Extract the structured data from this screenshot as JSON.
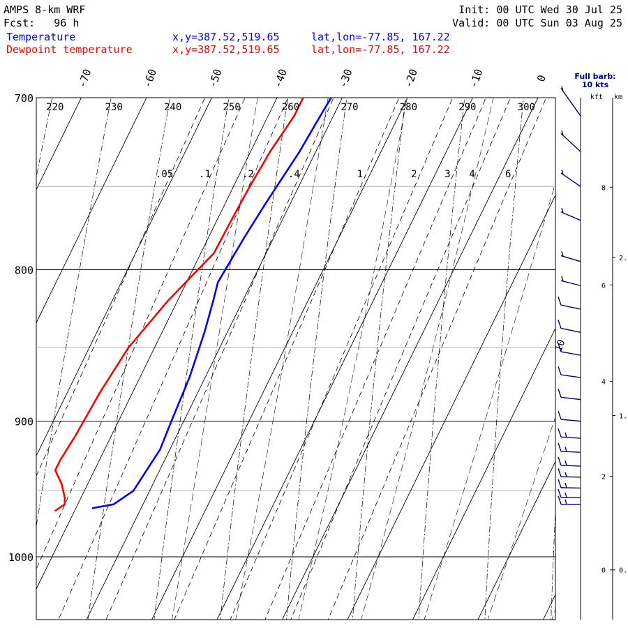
{
  "header": {
    "model": "AMPS 8-km WRF",
    "forecast_label": "Fcst:",
    "forecast_hours": "96 h",
    "init_label": "Init:",
    "init_time": "00 UTC Wed 30 Jul 25",
    "valid_label": "Valid:",
    "valid_time": "00 UTC Sun 03 Aug 25"
  },
  "series_info": [
    {
      "name": "Temperature",
      "xy": "x,y=387.52,519.65",
      "latlon": "lat,lon=-77.85, 167.22",
      "color": "#0000ff"
    },
    {
      "name": "Dewpoint temperature",
      "xy": "x,y=387.52,519.65",
      "latlon": "lat,lon=-77.85, 167.22",
      "color": "#ff0000"
    }
  ],
  "wind_legend": {
    "line1": "Full barb:",
    "line2": "10 kts",
    "color": "#000080"
  },
  "height_axis": {
    "left_unit": "kft",
    "right_unit": "km"
  },
  "chart_data": {
    "type": "line",
    "diagram": "skew-T log-p",
    "pressure_range_hPa": [
      700,
      1045
    ],
    "pressure_ticks": [
      "700",
      "800",
      "900",
      "1000"
    ],
    "temperature_ticks_C": [
      "-70",
      "-60",
      "-50",
      "-40",
      "-30",
      "-20",
      "-10",
      "0"
    ],
    "dry_adiabat_labels_K": [
      "220",
      "230",
      "240",
      "250",
      "260",
      "270",
      "280",
      "290",
      "300"
    ],
    "mixing_ratio_labels_gkg": [
      ".05",
      ".1",
      ".2",
      ".4",
      "1",
      "2",
      "3",
      "4",
      "6"
    ],
    "moist_adiabat_label": "10",
    "kft_ticks": [
      "0",
      "2",
      "4",
      "6",
      "8"
    ],
    "km_ticks": [
      "0.",
      "1.",
      "2."
    ],
    "series": [
      {
        "name": "Temperature",
        "color": "#0000ff",
        "points": [
          [
            963,
            -37.5
          ],
          [
            960,
            -34.5
          ],
          [
            950,
            -32.5
          ],
          [
            920,
            -31.5
          ],
          [
            900,
            -31.9
          ],
          [
            870,
            -32.4
          ],
          [
            840,
            -33.5
          ],
          [
            820,
            -34.5
          ],
          [
            808,
            -35.2
          ],
          [
            800,
            -35.0
          ],
          [
            780,
            -34.5
          ],
          [
            760,
            -33.8
          ],
          [
            730,
            -32.5
          ],
          [
            710,
            -32.0
          ],
          [
            700,
            -31.7
          ]
        ]
      },
      {
        "name": "Dewpoint temperature",
        "color": "#ff0000",
        "points": [
          [
            965,
            -43.0
          ],
          [
            960,
            -42.0
          ],
          [
            955,
            -42.5
          ],
          [
            945,
            -44.0
          ],
          [
            935,
            -46.0
          ],
          [
            928,
            -46.0
          ],
          [
            910,
            -45.5
          ],
          [
            880,
            -45.0
          ],
          [
            850,
            -44.0
          ],
          [
            820,
            -41.5
          ],
          [
            800,
            -39.2
          ],
          [
            790,
            -38.0
          ],
          [
            770,
            -37.8
          ],
          [
            750,
            -37.5
          ],
          [
            730,
            -37.0
          ],
          [
            710,
            -36.0
          ],
          [
            700,
            -36.0
          ]
        ]
      }
    ],
    "wind_barbs_kts": [
      {
        "p": 960,
        "speed": 15,
        "dir": 270
      },
      {
        "p": 955,
        "speed": 15,
        "dir": 270
      },
      {
        "p": 948,
        "speed": 15,
        "dir": 275
      },
      {
        "p": 940,
        "speed": 15,
        "dir": 275
      },
      {
        "p": 932,
        "speed": 15,
        "dir": 280
      },
      {
        "p": 922,
        "speed": 15,
        "dir": 280
      },
      {
        "p": 912,
        "speed": 15,
        "dir": 285
      },
      {
        "p": 900,
        "speed": 10,
        "dir": 290
      },
      {
        "p": 885,
        "speed": 10,
        "dir": 295
      },
      {
        "p": 870,
        "speed": 10,
        "dir": 300
      },
      {
        "p": 855,
        "speed": 10,
        "dir": 305
      },
      {
        "p": 840,
        "speed": 10,
        "dir": 310
      },
      {
        "p": 825,
        "speed": 10,
        "dir": 310
      },
      {
        "p": 810,
        "speed": 5,
        "dir": 315
      },
      {
        "p": 795,
        "speed": 5,
        "dir": 320
      },
      {
        "p": 770,
        "speed": 5,
        "dir": 330
      },
      {
        "p": 750,
        "speed": 5,
        "dir": 340
      },
      {
        "p": 730,
        "speed": 5,
        "dir": 345
      },
      {
        "p": 710,
        "speed": 5,
        "dir": 350
      }
    ]
  }
}
